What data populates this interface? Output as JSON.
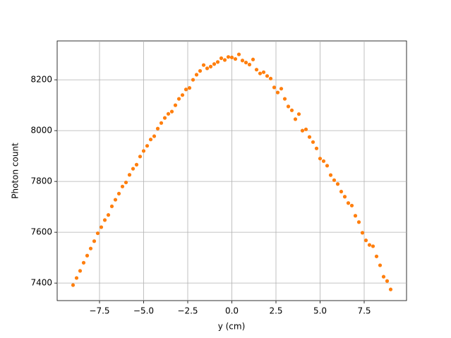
{
  "chart_data": {
    "type": "scatter",
    "xlabel": "y (cm)",
    "ylabel": "Photon count",
    "x": [
      -9.0,
      -8.8,
      -8.6,
      -8.4,
      -8.2,
      -8.0,
      -7.8,
      -7.6,
      -7.4,
      -7.2,
      -7.0,
      -6.8,
      -6.6,
      -6.4,
      -6.2,
      -6.0,
      -5.8,
      -5.6,
      -5.4,
      -5.2,
      -5.0,
      -4.8,
      -4.6,
      -4.4,
      -4.2,
      -4.0,
      -3.8,
      -3.6,
      -3.4,
      -3.2,
      -3.0,
      -2.8,
      -2.6,
      -2.4,
      -2.2,
      -2.0,
      -1.8,
      -1.6,
      -1.4,
      -1.2,
      -1.0,
      -0.8,
      -0.6,
      -0.4,
      -0.2,
      0,
      0.2,
      0.4,
      0.6,
      0.8,
      1.0,
      1.2,
      1.4,
      1.6,
      1.8,
      2.0,
      2.2,
      2.4,
      2.6,
      2.8,
      3.0,
      3.2,
      3.4,
      3.6,
      3.8,
      4.0,
      4.2,
      4.4,
      4.6,
      4.8,
      5.0,
      5.2,
      5.4,
      5.6,
      5.8,
      6.0,
      6.2,
      6.4,
      6.6,
      6.8,
      7.0,
      7.2,
      7.4,
      7.6,
      7.8,
      8.0,
      8.2,
      8.4,
      8.6,
      8.8,
      9.0
    ],
    "series": [
      {
        "color": "#ff7f0e",
        "values": [
          7392,
          7420,
          7448,
          7480,
          7508,
          7536,
          7565,
          7596,
          7620,
          7648,
          7668,
          7702,
          7728,
          7752,
          7780,
          7796,
          7826,
          7850,
          7866,
          7898,
          7920,
          7940,
          7965,
          7978,
          8008,
          8030,
          8050,
          8066,
          8075,
          8100,
          8125,
          8140,
          8162,
          8168,
          8200,
          8220,
          8235,
          8258,
          8245,
          8252,
          8262,
          8270,
          8285,
          8278,
          8290,
          8288,
          8282,
          8300,
          8276,
          8268,
          8260,
          8280,
          8240,
          8225,
          8230,
          8215,
          8205,
          8170,
          8150,
          8165,
          8125,
          8095,
          8080,
          8045,
          8065,
          8000,
          8005,
          7975,
          7955,
          7930,
          7890,
          7880,
          7862,
          7825,
          7805,
          7790,
          7760,
          7740,
          7715,
          7705,
          7665,
          7640,
          7598,
          7568,
          7550,
          7545,
          7505,
          7470,
          7425,
          7408,
          7375
        ]
      }
    ],
    "xlim": [
      -9.9,
      9.9
    ],
    "ylim": [
      7331,
      8353
    ],
    "xticks": [
      {
        "value": -7.5,
        "label": "−7.5"
      },
      {
        "value": -5,
        "label": "−5.0"
      },
      {
        "value": -2.5,
        "label": "−2.5"
      },
      {
        "value": 0,
        "label": "0.0"
      },
      2.5,
      {
        "value": 5,
        "label": "5.0"
      },
      7.5
    ],
    "yticks": [
      7400,
      7600,
      7800,
      8000,
      8200
    ],
    "grid": true
  }
}
